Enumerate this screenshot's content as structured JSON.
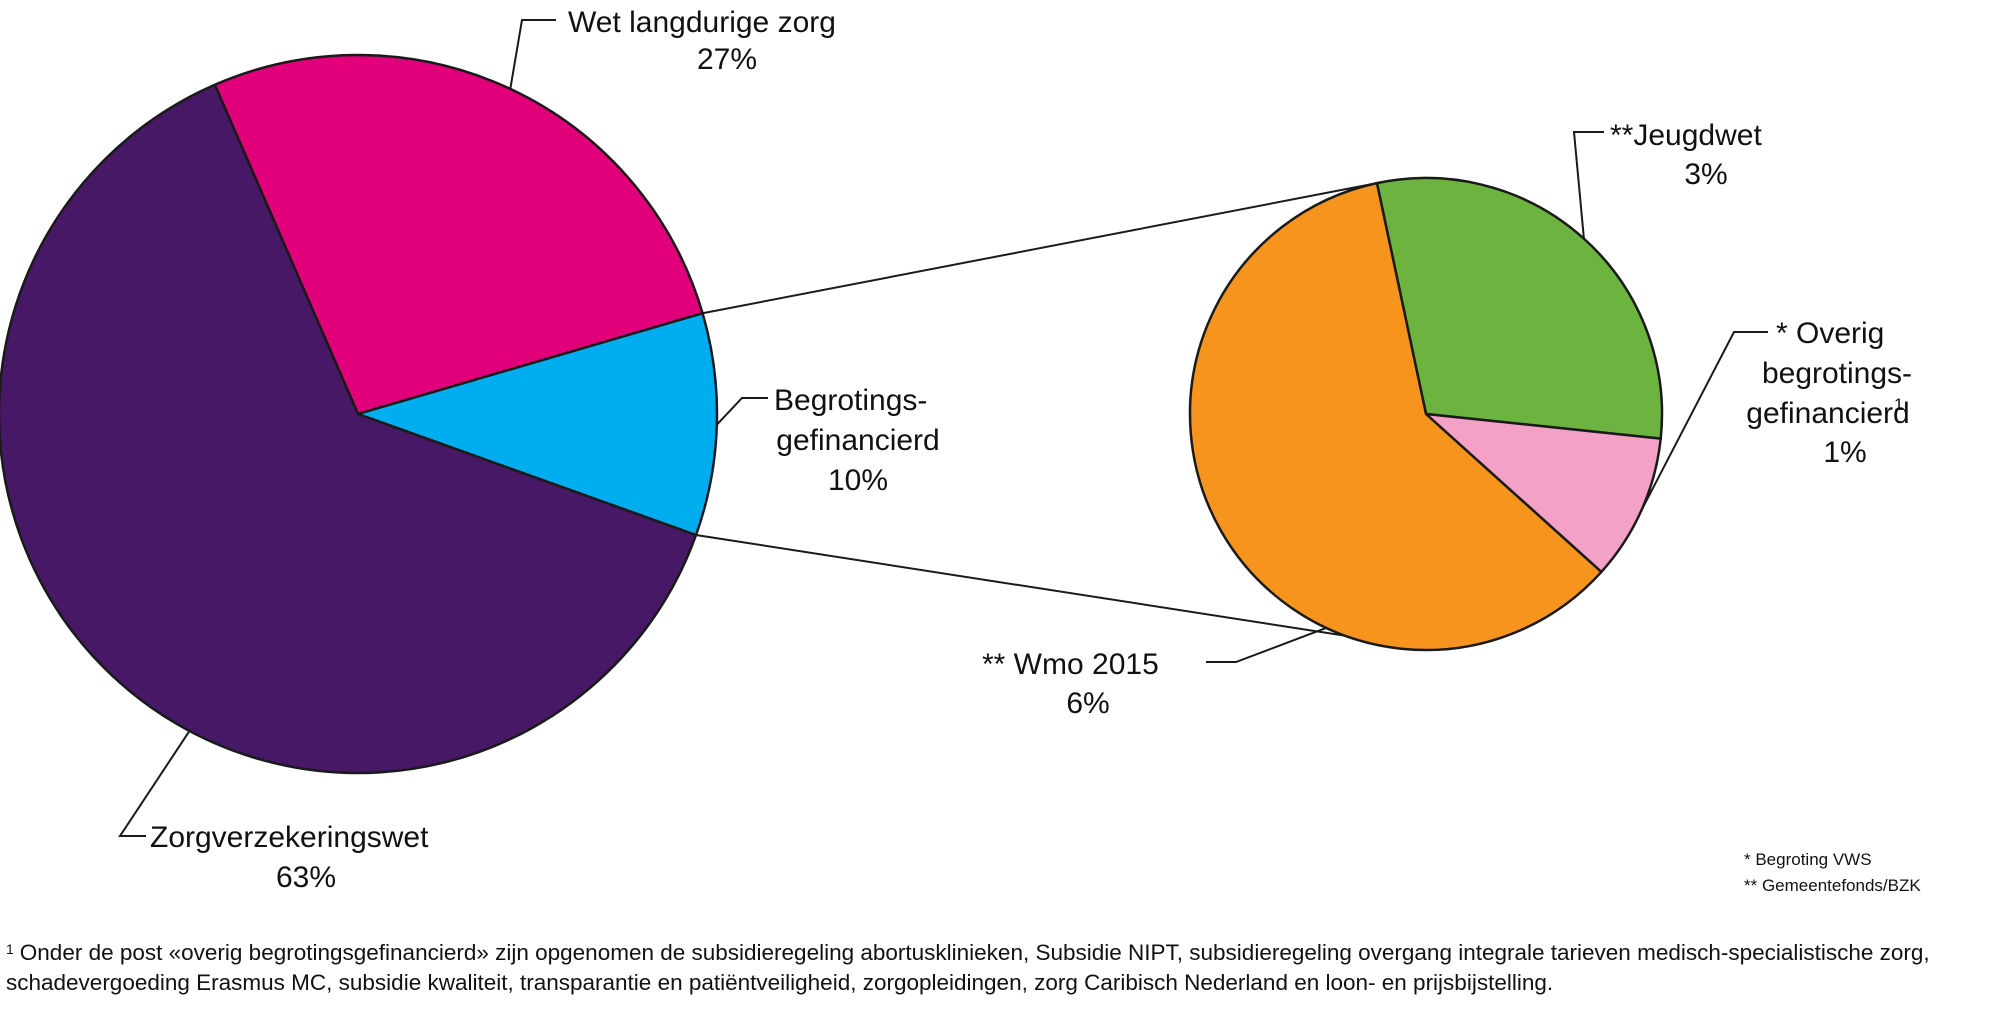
{
  "chart_data": [
    {
      "type": "pie",
      "slices": [
        {
          "label": "Wet langdurige zorg",
          "value": 27,
          "value_label": "27%",
          "color": "#e2007a"
        },
        {
          "label": "Begrotings- gefinancierd",
          "value": 10,
          "value_label": "10%",
          "color": "#00aeef"
        },
        {
          "label": "Zorgverzekeringswet",
          "value": 63,
          "value_label": "63%",
          "color": "#461865"
        }
      ]
    },
    {
      "type": "pie",
      "breakdown_of": "Begrotings- gefinancierd",
      "slices": [
        {
          "label": "** Jeugdwet",
          "value": 3,
          "value_label": "3%",
          "color": "#6cb33f"
        },
        {
          "label": "* Overig begrotings- gefinancierd",
          "value": 1,
          "value_label": "1%",
          "color": "#f4a1c7"
        },
        {
          "label": "** Wmo 2015",
          "value": 6,
          "value_label": "6%",
          "color": "#f7941d"
        }
      ]
    }
  ],
  "labels": {
    "wlz_name": "Wet langdurige zorg",
    "wlz_pct": "27%",
    "begr_line1": "Begrotings-",
    "begr_line2": "gefinancierd",
    "begr_pct": "10%",
    "zvw_name": "Zorgverzekeringswet",
    "zvw_pct": "63%",
    "jeugd_name": "**Jeugdwet",
    "jeugd_pct": "3%",
    "overig_line1": "* Overig",
    "overig_line2": "begrotings-",
    "overig_line3": "gefinancierd",
    "overig_sup": "1",
    "overig_pct": "1%",
    "wmo_name": "** Wmo 2015",
    "wmo_pct": "6%"
  },
  "notes": {
    "vws": "* Begroting VWS",
    "bzk": "** Gemeentefonds/BZK"
  },
  "footnote": {
    "marker": "1",
    "text": "Onder de post «overig begrotingsgefinancierd» zijn opgenomen de subsidieregeling abortusklinieken, Subsidie NIPT, subsidieregeling overgang integrale tarieven medisch-specialistische zorg, schadevergoeding Erasmus MC, subsidie kwaliteit, transparantie en patiëntveiligheid, zorgopleidingen, zorg Caribisch Nederland en loon- en prijsbijstelling."
  }
}
